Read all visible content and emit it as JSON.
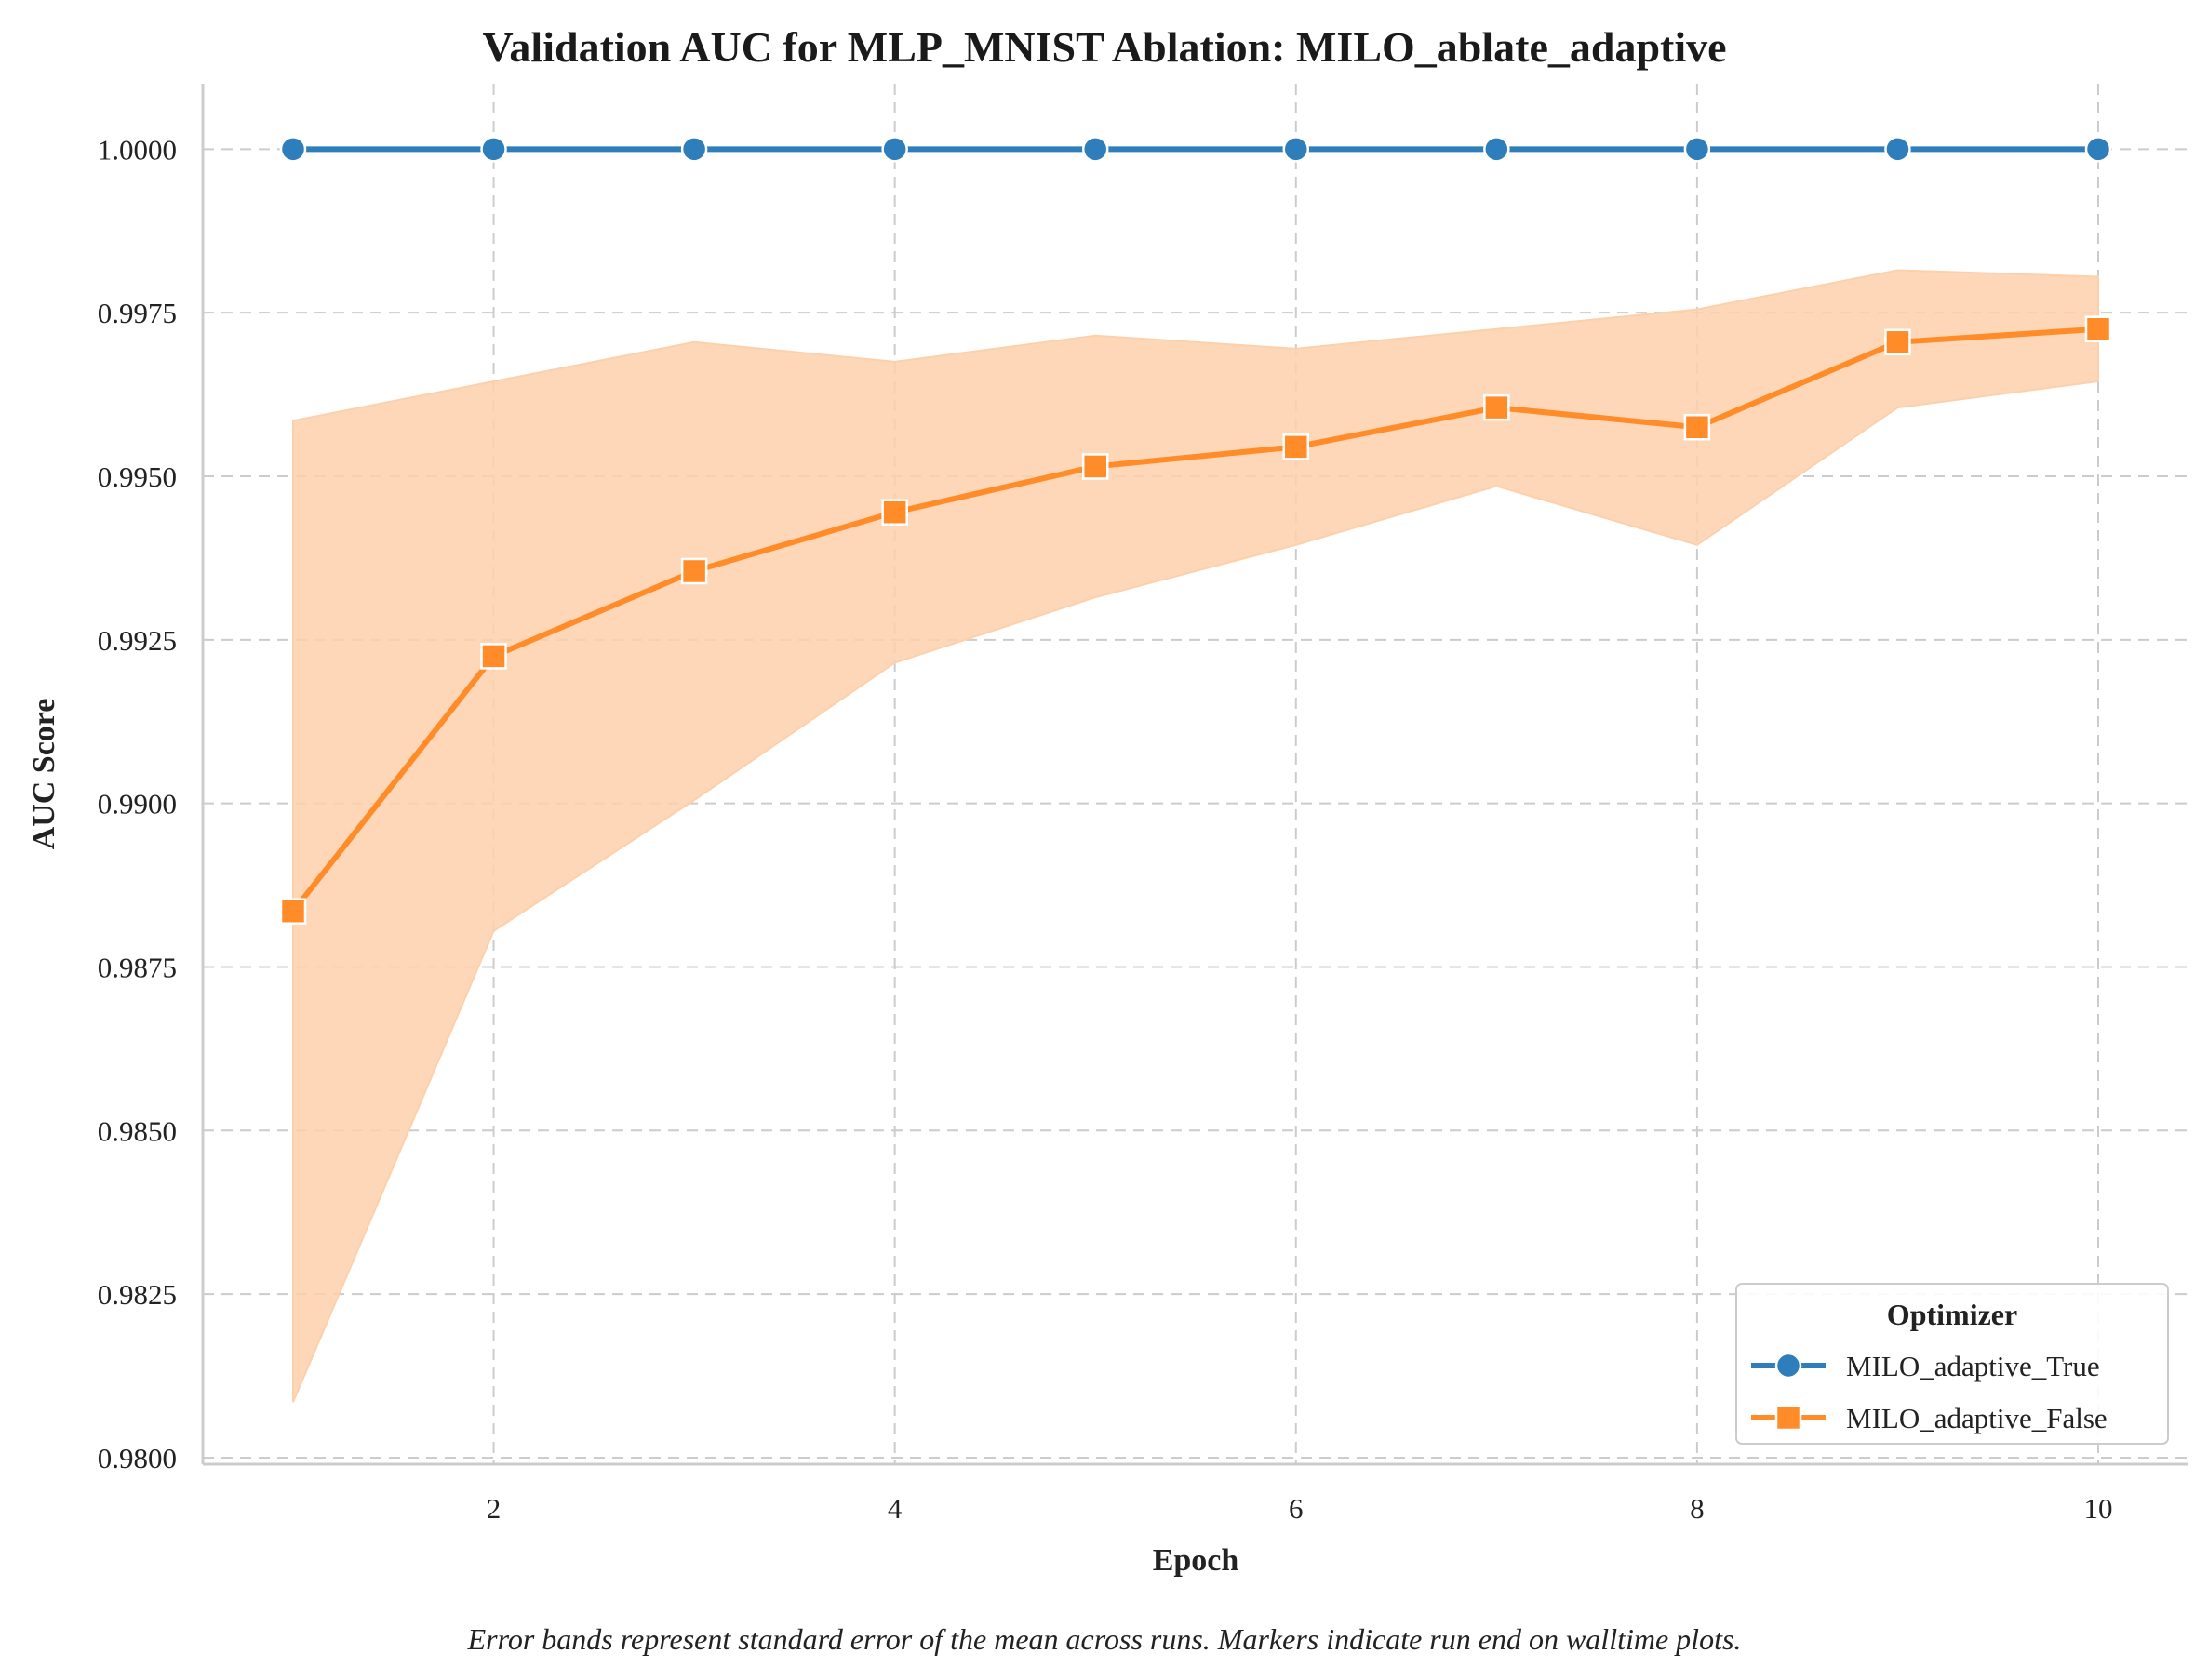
{
  "chart_data": {
    "type": "line",
    "title": "Validation AUC for MLP_MNIST Ablation: MILO_ablate_adaptive",
    "xlabel": "Epoch",
    "ylabel": "AUC Score",
    "xlim": [
      0.55,
      10.45
    ],
    "ylim": [
      0.9799,
      1.001
    ],
    "xticks": [
      2,
      4,
      6,
      8,
      10
    ],
    "xtick_labels": [
      "2",
      "4",
      "6",
      "8",
      "10"
    ],
    "yticks": [
      0.98,
      0.9825,
      0.985,
      0.9875,
      0.99,
      0.9925,
      0.995,
      0.9975,
      1.0
    ],
    "ytick_labels": [
      "0.9800",
      "0.9825",
      "0.9850",
      "0.9875",
      "0.9900",
      "0.9925",
      "0.9950",
      "0.9975",
      "1.0000"
    ],
    "grid": true,
    "x": [
      1,
      2,
      3,
      4,
      5,
      6,
      7,
      8,
      9,
      10
    ],
    "series": [
      {
        "name": "MILO_adaptive_True",
        "color": "#2f7ebc",
        "marker": "circle",
        "values": [
          1.0,
          1.0,
          1.0,
          1.0,
          1.0,
          1.0,
          1.0,
          1.0,
          1.0,
          1.0
        ]
      },
      {
        "name": "MILO_adaptive_False",
        "color": "#ff8c28",
        "marker": "square",
        "values": [
          0.98835,
          0.99225,
          0.99355,
          0.99445,
          0.99515,
          0.99545,
          0.99605,
          0.99575,
          0.99705,
          0.99725
        ],
        "band_lower": [
          0.98085,
          0.98805,
          0.99005,
          0.99215,
          0.99315,
          0.99395,
          0.99485,
          0.99395,
          0.99605,
          0.99645
        ],
        "band_upper": [
          0.99585,
          0.99645,
          0.99705,
          0.99675,
          0.99715,
          0.99695,
          0.99725,
          0.99755,
          0.99815,
          0.99805
        ],
        "band_color": "#fdd0ac"
      }
    ],
    "legend": {
      "title": "Optimizer",
      "position": "lower-right"
    },
    "caption": "Error bands represent standard error of the mean across runs. Markers indicate run end on walltime plots."
  }
}
